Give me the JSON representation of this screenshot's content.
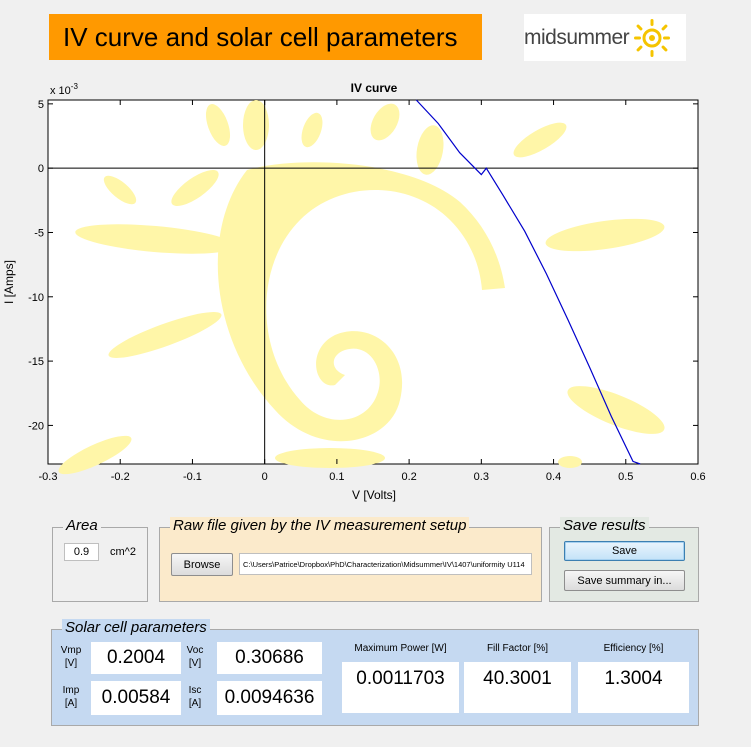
{
  "banner": {
    "title": "IV curve and solar cell parameters"
  },
  "logo": {
    "text": "midsummer"
  },
  "plot": {
    "title": "IV curve",
    "xlabel": "V [Volts]",
    "ylabel": "I [Amps]",
    "exponent_label": "x 10",
    "exponent_power": "-3",
    "xticks": [
      "-0.3",
      "-0.2",
      "-0.1",
      "0",
      "0.1",
      "0.2",
      "0.3",
      "0.4",
      "0.5",
      "0.6"
    ],
    "yticks": [
      "5",
      "0",
      "-5",
      "-10",
      "-15",
      "-20"
    ]
  },
  "chart_data": {
    "type": "line",
    "title": "IV curve",
    "xlabel": "V [Volts]",
    "ylabel": "I [Amps]",
    "xlim": [
      -0.3,
      0.6
    ],
    "ylim": [
      -0.023,
      0.0053
    ],
    "series": [
      {
        "x": [
          0.21,
          0.24,
          0.27,
          0.3,
          0.3069,
          0.33,
          0.36,
          0.39,
          0.42,
          0.45,
          0.48,
          0.51,
          0.52
        ],
        "y": [
          0.0053,
          0.0035,
          0.0012,
          -0.0005,
          0.0,
          -0.0021,
          -0.0049,
          -0.0082,
          -0.0118,
          -0.0155,
          -0.0193,
          -0.0228,
          -0.0233
        ]
      }
    ]
  },
  "area": {
    "title": "Area",
    "value": "0.9",
    "unit": "cm^2"
  },
  "raw_file": {
    "title": "Raw file given by the IV measurement setup",
    "browse_label": "Browse",
    "path": "C:\\Users\\Patrice\\Dropbox\\PhD\\Characterization\\Midsummer\\IV\\1407\\uniformity U114"
  },
  "save_results": {
    "title": "Save results",
    "save_label": "Save",
    "save_summary_label": "Save summary in..."
  },
  "params": {
    "title": "Solar cell parameters",
    "vmp_label": "Vmp",
    "vmp_unit": "[V]",
    "vmp_value": "0.2004",
    "voc_label": "Voc",
    "voc_unit": "[V]",
    "voc_value": "0.30686",
    "imp_label": "Imp",
    "imp_unit": "[A]",
    "imp_value": "0.00584",
    "isc_label": "Isc",
    "isc_unit": "[A]",
    "isc_value": "0.0094636",
    "pmax_label": "Maximum Power [W]",
    "pmax_value": "0.0011703",
    "ff_label": "Fill Factor [%]",
    "ff_value": "40.3001",
    "eff_label": "Efficiency [%]",
    "eff_value": "1.3004"
  }
}
